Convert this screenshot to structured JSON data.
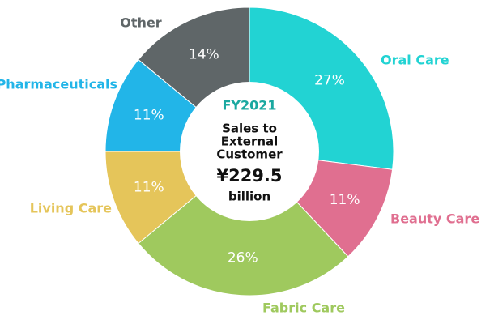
{
  "chart_data": {
    "type": "donut",
    "categories": [
      "Oral Care",
      "Beauty Care",
      "Fabric Care",
      "Living Care",
      "Pharmaceuticals",
      "Other"
    ],
    "values": [
      27,
      11,
      26,
      11,
      11,
      14
    ],
    "value_labels": [
      "27%",
      "11%",
      "26%",
      "11%",
      "11%",
      "14%"
    ],
    "colors": [
      "#22d3d3",
      "#e06f90",
      "#9fc95e",
      "#e5c55a",
      "#22b5e8",
      "#5f6668"
    ],
    "center_title": "FY2021",
    "center_lines": [
      "Sales to",
      "External",
      "Customer"
    ],
    "center_amount": "¥229.5",
    "center_unit": "billion"
  }
}
